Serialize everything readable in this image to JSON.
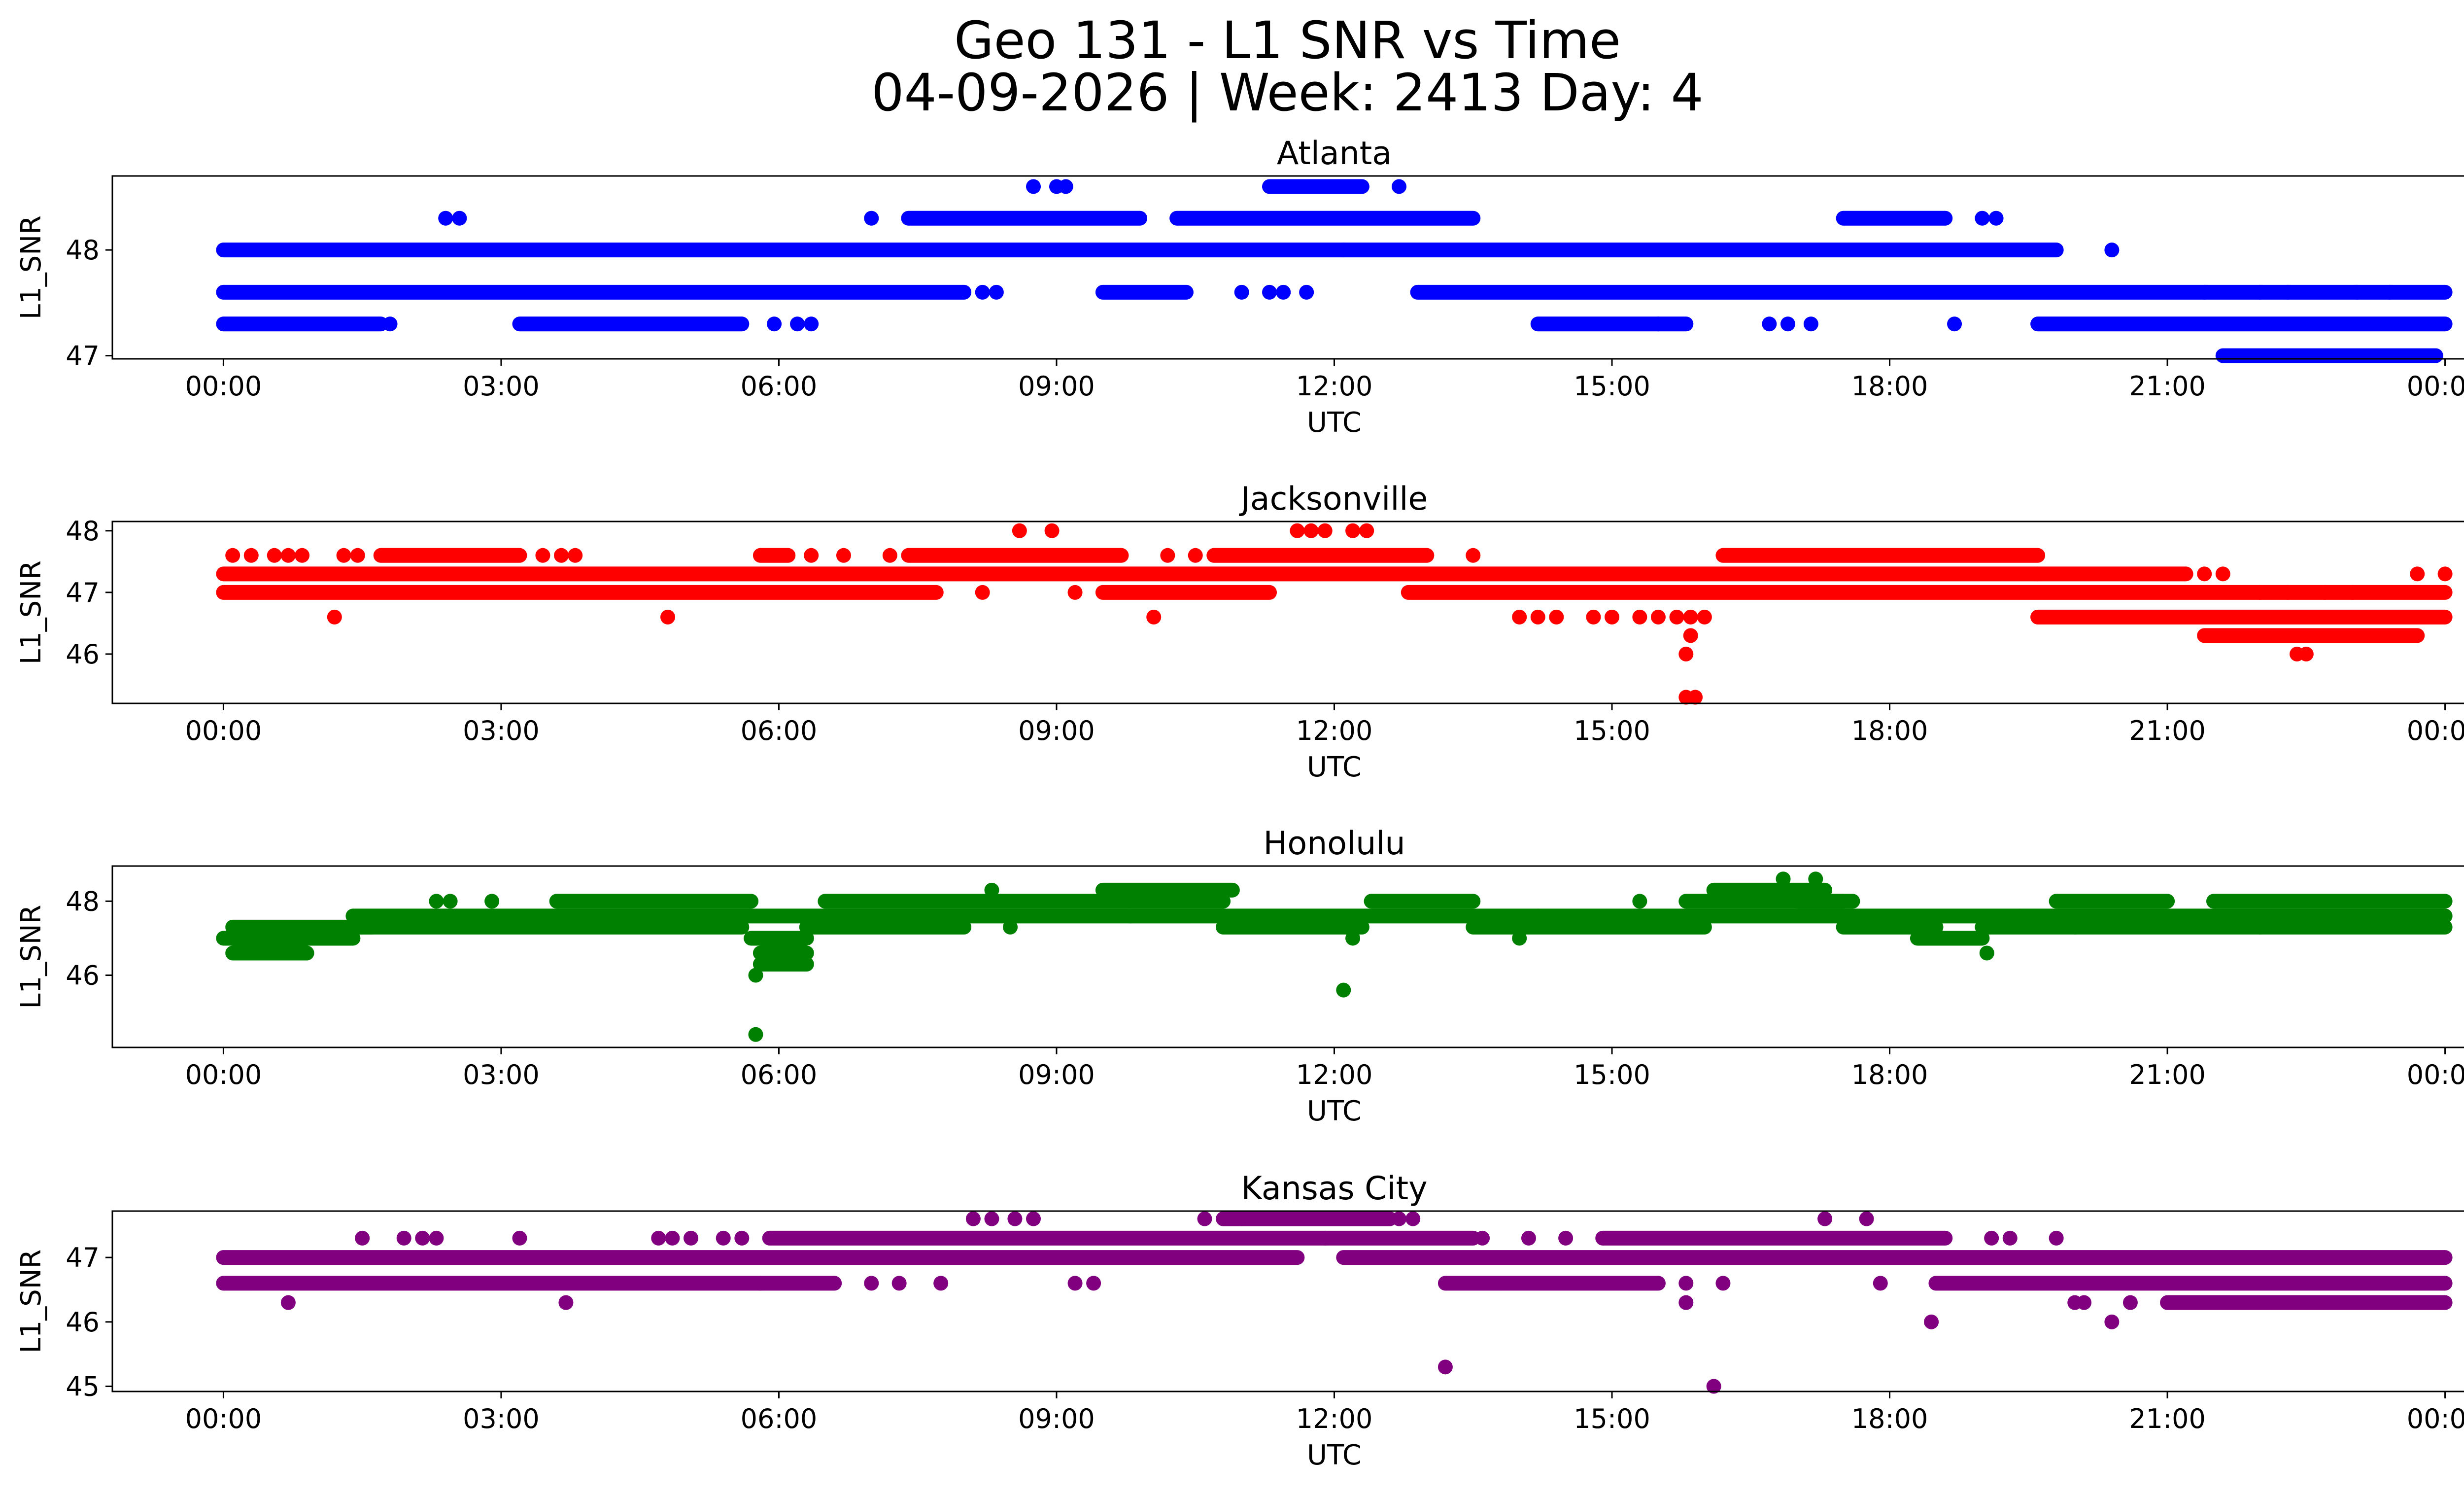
{
  "figure": {
    "title": "Geo 131 - L1 SNR vs Time",
    "subtitle": "04-09-2026 | Week: 2413 Day: 4"
  },
  "chart_data": [
    {
      "type": "scatter",
      "title": "Atlanta",
      "xlabel": "UTC",
      "ylabel": "L1_SNR",
      "color": "#0000ff",
      "xticks": [
        "00:00",
        "03:00",
        "06:00",
        "09:00",
        "12:00",
        "15:00",
        "18:00",
        "21:00",
        "00:00"
      ],
      "yticks": [
        47,
        48
      ],
      "xlim": [
        -1.2,
        25.2
      ],
      "ylim": [
        46.97,
        48.7
      ],
      "bands": [
        {
          "y": 48.0,
          "x": [
            0,
            12.1
          ]
        },
        {
          "y": 48.0,
          "x": [
            12.1,
            19.8
          ]
        },
        {
          "y": 47.6,
          "x": [
            0,
            8.0
          ]
        },
        {
          "y": 47.6,
          "x": [
            9.5,
            10.4
          ]
        },
        {
          "y": 47.6,
          "x": [
            12.9,
            21.4
          ]
        },
        {
          "y": 47.6,
          "x": [
            21.4,
            24.0
          ]
        },
        {
          "y": 47.3,
          "x": [
            0,
            1.7
          ]
        },
        {
          "y": 47.3,
          "x": [
            3.2,
            5.6
          ]
        },
        {
          "y": 47.3,
          "x": [
            14.2,
            15.8
          ]
        },
        {
          "y": 47.3,
          "x": [
            19.6,
            24.0
          ]
        },
        {
          "y": 48.3,
          "x": [
            7.4,
            9.9
          ]
        },
        {
          "y": 48.3,
          "x": [
            10.3,
            13.5
          ]
        },
        {
          "y": 48.3,
          "x": [
            17.5,
            18.6
          ]
        },
        {
          "y": 48.6,
          "x": [
            11.3,
            12.3
          ]
        },
        {
          "y": 47.0,
          "x": [
            21.6,
            23.9
          ]
        }
      ],
      "points": [
        {
          "x": 2.4,
          "y": 48.3
        },
        {
          "x": 2.55,
          "y": 48.3
        },
        {
          "x": 7.0,
          "y": 48.3
        },
        {
          "x": 8.75,
          "y": 48.6
        },
        {
          "x": 9.0,
          "y": 48.6
        },
        {
          "x": 9.1,
          "y": 48.6
        },
        {
          "x": 12.7,
          "y": 48.6
        },
        {
          "x": 19.0,
          "y": 48.3
        },
        {
          "x": 19.15,
          "y": 48.3
        },
        {
          "x": 20.4,
          "y": 48.0
        },
        {
          "x": 8.2,
          "y": 47.6
        },
        {
          "x": 8.35,
          "y": 47.6
        },
        {
          "x": 11.0,
          "y": 47.6
        },
        {
          "x": 11.3,
          "y": 47.6
        },
        {
          "x": 11.45,
          "y": 47.6
        },
        {
          "x": 11.7,
          "y": 47.6
        },
        {
          "x": 22.0,
          "y": 47.6
        },
        {
          "x": 22.3,
          "y": 47.6
        },
        {
          "x": 23.05,
          "y": 47.6
        },
        {
          "x": 23.4,
          "y": 47.6
        },
        {
          "x": 1.8,
          "y": 47.3
        },
        {
          "x": 5.95,
          "y": 47.3
        },
        {
          "x": 6.2,
          "y": 47.3
        },
        {
          "x": 6.35,
          "y": 47.3
        },
        {
          "x": 15.5,
          "y": 47.3
        },
        {
          "x": 16.7,
          "y": 47.3
        },
        {
          "x": 16.9,
          "y": 47.3
        },
        {
          "x": 17.15,
          "y": 47.3
        },
        {
          "x": 18.7,
          "y": 47.3
        }
      ]
    },
    {
      "type": "scatter",
      "title": "Jacksonville",
      "xlabel": "UTC",
      "ylabel": "L1_SNR",
      "color": "#ff0000",
      "xticks": [
        "00:00",
        "03:00",
        "06:00",
        "09:00",
        "12:00",
        "15:00",
        "18:00",
        "21:00",
        "00:00"
      ],
      "yticks": [
        46,
        47,
        48
      ],
      "xlim": [
        -1.2,
        25.2
      ],
      "ylim": [
        45.2,
        48.15
      ],
      "bands": [
        {
          "y": 47.3,
          "x": [
            0,
            19.6
          ]
        },
        {
          "y": 47.3,
          "x": [
            19.6,
            21.2
          ]
        },
        {
          "y": 47.0,
          "x": [
            0,
            7.7
          ]
        },
        {
          "y": 47.0,
          "x": [
            9.5,
            11.3
          ]
        },
        {
          "y": 47.0,
          "x": [
            12.8,
            24.0
          ]
        },
        {
          "y": 47.6,
          "x": [
            7.4,
            9.7
          ]
        },
        {
          "y": 47.6,
          "x": [
            10.7,
            13.0
          ]
        },
        {
          "y": 47.6,
          "x": [
            16.2,
            19.6
          ]
        },
        {
          "y": 47.6,
          "x": [
            1.7,
            3.2
          ]
        },
        {
          "y": 47.6,
          "x": [
            5.8,
            6.1
          ]
        },
        {
          "y": 46.6,
          "x": [
            19.6,
            24.0
          ]
        },
        {
          "y": 46.3,
          "x": [
            21.4,
            23.7
          ]
        }
      ],
      "points": [
        {
          "x": 0.1,
          "y": 47.6
        },
        {
          "x": 0.3,
          "y": 47.6
        },
        {
          "x": 0.55,
          "y": 47.6
        },
        {
          "x": 0.7,
          "y": 47.6
        },
        {
          "x": 0.85,
          "y": 47.6
        },
        {
          "x": 1.3,
          "y": 47.6
        },
        {
          "x": 1.45,
          "y": 47.6
        },
        {
          "x": 3.45,
          "y": 47.6
        },
        {
          "x": 3.65,
          "y": 47.6
        },
        {
          "x": 3.8,
          "y": 47.6
        },
        {
          "x": 6.35,
          "y": 47.6
        },
        {
          "x": 6.7,
          "y": 47.6
        },
        {
          "x": 7.2,
          "y": 47.6
        },
        {
          "x": 10.2,
          "y": 47.6
        },
        {
          "x": 10.5,
          "y": 47.6
        },
        {
          "x": 13.5,
          "y": 47.6
        },
        {
          "x": 1.2,
          "y": 46.6
        },
        {
          "x": 4.8,
          "y": 46.6
        },
        {
          "x": 10.05,
          "y": 46.6
        },
        {
          "x": 8.6,
          "y": 48.0
        },
        {
          "x": 8.95,
          "y": 48.0
        },
        {
          "x": 11.6,
          "y": 48.0
        },
        {
          "x": 11.75,
          "y": 48.0
        },
        {
          "x": 11.9,
          "y": 48.0
        },
        {
          "x": 12.2,
          "y": 48.0
        },
        {
          "x": 12.35,
          "y": 48.0
        },
        {
          "x": 8.2,
          "y": 47.0
        },
        {
          "x": 9.2,
          "y": 47.0
        },
        {
          "x": 14.0,
          "y": 46.6
        },
        {
          "x": 14.2,
          "y": 46.6
        },
        {
          "x": 14.4,
          "y": 46.6
        },
        {
          "x": 14.8,
          "y": 46.6
        },
        {
          "x": 15.0,
          "y": 46.6
        },
        {
          "x": 15.3,
          "y": 46.6
        },
        {
          "x": 15.5,
          "y": 46.6
        },
        {
          "x": 15.7,
          "y": 46.6
        },
        {
          "x": 15.85,
          "y": 46.6
        },
        {
          "x": 16.0,
          "y": 46.6
        },
        {
          "x": 15.85,
          "y": 46.3
        },
        {
          "x": 15.8,
          "y": 46.0
        },
        {
          "x": 15.8,
          "y": 45.3
        },
        {
          "x": 15.9,
          "y": 45.3
        },
        {
          "x": 22.4,
          "y": 46.0
        },
        {
          "x": 22.5,
          "y": 46.0
        },
        {
          "x": 21.4,
          "y": 47.3
        },
        {
          "x": 21.6,
          "y": 47.3
        },
        {
          "x": 23.7,
          "y": 47.3
        },
        {
          "x": 24.0,
          "y": 47.3
        },
        {
          "x": 22.0,
          "y": 47.0
        },
        {
          "x": 22.3,
          "y": 47.0
        },
        {
          "x": 22.7,
          "y": 47.0
        },
        {
          "x": 23.0,
          "y": 47.0
        }
      ]
    },
    {
      "type": "scatter",
      "title": "Honolulu",
      "xlabel": "UTC",
      "ylabel": "L1_SNR",
      "color": "#008000",
      "xticks": [
        "00:00",
        "03:00",
        "06:00",
        "09:00",
        "12:00",
        "15:00",
        "18:00",
        "21:00",
        "00:00"
      ],
      "yticks": [
        46,
        48
      ],
      "xlim": [
        -1.2,
        25.2
      ],
      "ylim": [
        44.05,
        48.95
      ],
      "bands": [
        {
          "y": 47.0,
          "x": [
            0,
            1.4
          ]
        },
        {
          "y": 47.3,
          "x": [
            0.1,
            1.6
          ]
        },
        {
          "y": 46.6,
          "x": [
            0.1,
            0.9
          ]
        },
        {
          "y": 47.3,
          "x": [
            1.4,
            5.6
          ]
        },
        {
          "y": 47.6,
          "x": [
            1.4,
            9.8
          ]
        },
        {
          "y": 47.6,
          "x": [
            9.8,
            24.0
          ]
        },
        {
          "y": 48.0,
          "x": [
            3.6,
            5.7
          ]
        },
        {
          "y": 47.3,
          "x": [
            6.3,
            8.0
          ]
        },
        {
          "y": 48.0,
          "x": [
            6.5,
            10.8
          ]
        },
        {
          "y": 48.3,
          "x": [
            9.5,
            10.9
          ]
        },
        {
          "y": 47.3,
          "x": [
            10.8,
            12.3
          ]
        },
        {
          "y": 48.0,
          "x": [
            12.4,
            13.5
          ]
        },
        {
          "y": 47.3,
          "x": [
            13.5,
            16.0
          ]
        },
        {
          "y": 48.0,
          "x": [
            15.8,
            17.6
          ]
        },
        {
          "y": 48.3,
          "x": [
            16.1,
            17.3
          ]
        },
        {
          "y": 48.0,
          "x": [
            17.0,
            17.5
          ]
        },
        {
          "y": 47.3,
          "x": [
            17.5,
            18.5
          ]
        },
        {
          "y": 47.0,
          "x": [
            18.3,
            19.0
          ]
        },
        {
          "y": 47.3,
          "x": [
            19.0,
            20.0
          ]
        },
        {
          "y": 48.0,
          "x": [
            19.8,
            21.0
          ]
        },
        {
          "y": 47.3,
          "x": [
            20.0,
            22.0
          ]
        },
        {
          "y": 48.0,
          "x": [
            21.5,
            24.0
          ]
        },
        {
          "y": 47.3,
          "x": [
            22.0,
            24.0
          ]
        },
        {
          "y": 47.0,
          "x": [
            5.7,
            6.3
          ]
        },
        {
          "y": 46.6,
          "x": [
            5.8,
            6.3
          ]
        },
        {
          "y": 46.3,
          "x": [
            5.8,
            6.3
          ]
        }
      ],
      "points": [
        {
          "x": 0.9,
          "y": 46.6
        },
        {
          "x": 2.3,
          "y": 48.0
        },
        {
          "x": 2.45,
          "y": 48.0
        },
        {
          "x": 2.9,
          "y": 48.0
        },
        {
          "x": 5.75,
          "y": 46.0
        },
        {
          "x": 5.75,
          "y": 44.4
        },
        {
          "x": 8.3,
          "y": 48.3
        },
        {
          "x": 8.5,
          "y": 47.3
        },
        {
          "x": 12.1,
          "y": 45.6
        },
        {
          "x": 12.2,
          "y": 47.0
        },
        {
          "x": 14.0,
          "y": 47.0
        },
        {
          "x": 14.2,
          "y": 47.6
        },
        {
          "x": 15.3,
          "y": 48.0
        },
        {
          "x": 16.85,
          "y": 48.6
        },
        {
          "x": 17.2,
          "y": 48.6
        },
        {
          "x": 19.05,
          "y": 46.6
        },
        {
          "x": 19.4,
          "y": 47.6
        },
        {
          "x": 24.0,
          "y": 47.6
        }
      ]
    },
    {
      "type": "scatter",
      "title": "Kansas City",
      "xlabel": "UTC",
      "ylabel": "L1_SNR",
      "color": "#800080",
      "xticks": [
        "00:00",
        "03:00",
        "06:00",
        "09:00",
        "12:00",
        "15:00",
        "18:00",
        "21:00",
        "00:00"
      ],
      "yticks": [
        45,
        46,
        47
      ],
      "xlim": [
        -1.2,
        25.2
      ],
      "ylim": [
        44.92,
        47.72
      ],
      "bands": [
        {
          "y": 47.0,
          "x": [
            0,
            11.6
          ]
        },
        {
          "y": 46.6,
          "x": [
            0,
            5.8
          ]
        },
        {
          "y": 46.6,
          "x": [
            5.8,
            6.6
          ]
        },
        {
          "y": 47.3,
          "x": [
            5.9,
            11.9
          ]
        },
        {
          "y": 47.6,
          "x": [
            10.8,
            12.6
          ]
        },
        {
          "y": 47.0,
          "x": [
            12.1,
            24.0
          ]
        },
        {
          "y": 47.3,
          "x": [
            11.9,
            13.5
          ]
        },
        {
          "y": 46.6,
          "x": [
            13.2,
            15.5
          ]
        },
        {
          "y": 47.3,
          "x": [
            14.9,
            18.6
          ]
        },
        {
          "y": 46.6,
          "x": [
            18.5,
            24.0
          ]
        },
        {
          "y": 46.3,
          "x": [
            21.0,
            24.0
          ]
        }
      ],
      "points": [
        {
          "x": 0.7,
          "y": 46.3
        },
        {
          "x": 1.5,
          "y": 47.3
        },
        {
          "x": 1.95,
          "y": 47.3
        },
        {
          "x": 2.15,
          "y": 47.3
        },
        {
          "x": 2.3,
          "y": 47.3
        },
        {
          "x": 3.2,
          "y": 47.3
        },
        {
          "x": 3.7,
          "y": 46.3
        },
        {
          "x": 4.7,
          "y": 47.3
        },
        {
          "x": 4.85,
          "y": 47.3
        },
        {
          "x": 5.05,
          "y": 47.3
        },
        {
          "x": 5.4,
          "y": 47.3
        },
        {
          "x": 5.6,
          "y": 47.3
        },
        {
          "x": 7.0,
          "y": 46.6
        },
        {
          "x": 7.3,
          "y": 46.6
        },
        {
          "x": 7.75,
          "y": 46.6
        },
        {
          "x": 8.1,
          "y": 47.6
        },
        {
          "x": 8.3,
          "y": 47.6
        },
        {
          "x": 8.55,
          "y": 47.6
        },
        {
          "x": 8.75,
          "y": 47.6
        },
        {
          "x": 9.2,
          "y": 46.6
        },
        {
          "x": 9.4,
          "y": 46.6
        },
        {
          "x": 10.6,
          "y": 47.6
        },
        {
          "x": 11.0,
          "y": 47.6
        },
        {
          "x": 12.7,
          "y": 47.6
        },
        {
          "x": 12.85,
          "y": 47.6
        },
        {
          "x": 13.2,
          "y": 45.3
        },
        {
          "x": 13.6,
          "y": 47.3
        },
        {
          "x": 14.1,
          "y": 47.3
        },
        {
          "x": 14.5,
          "y": 47.3
        },
        {
          "x": 15.8,
          "y": 46.3
        },
        {
          "x": 15.8,
          "y": 46.6
        },
        {
          "x": 16.1,
          "y": 45.0
        },
        {
          "x": 16.2,
          "y": 46.6
        },
        {
          "x": 17.3,
          "y": 47.6
        },
        {
          "x": 17.75,
          "y": 47.6
        },
        {
          "x": 17.9,
          "y": 46.6
        },
        {
          "x": 18.45,
          "y": 46.0
        },
        {
          "x": 19.1,
          "y": 47.3
        },
        {
          "x": 19.3,
          "y": 47.3
        },
        {
          "x": 19.8,
          "y": 47.3
        },
        {
          "x": 20.0,
          "y": 46.3
        },
        {
          "x": 20.1,
          "y": 46.3
        },
        {
          "x": 20.4,
          "y": 46.0
        },
        {
          "x": 20.6,
          "y": 46.3
        }
      ]
    }
  ]
}
